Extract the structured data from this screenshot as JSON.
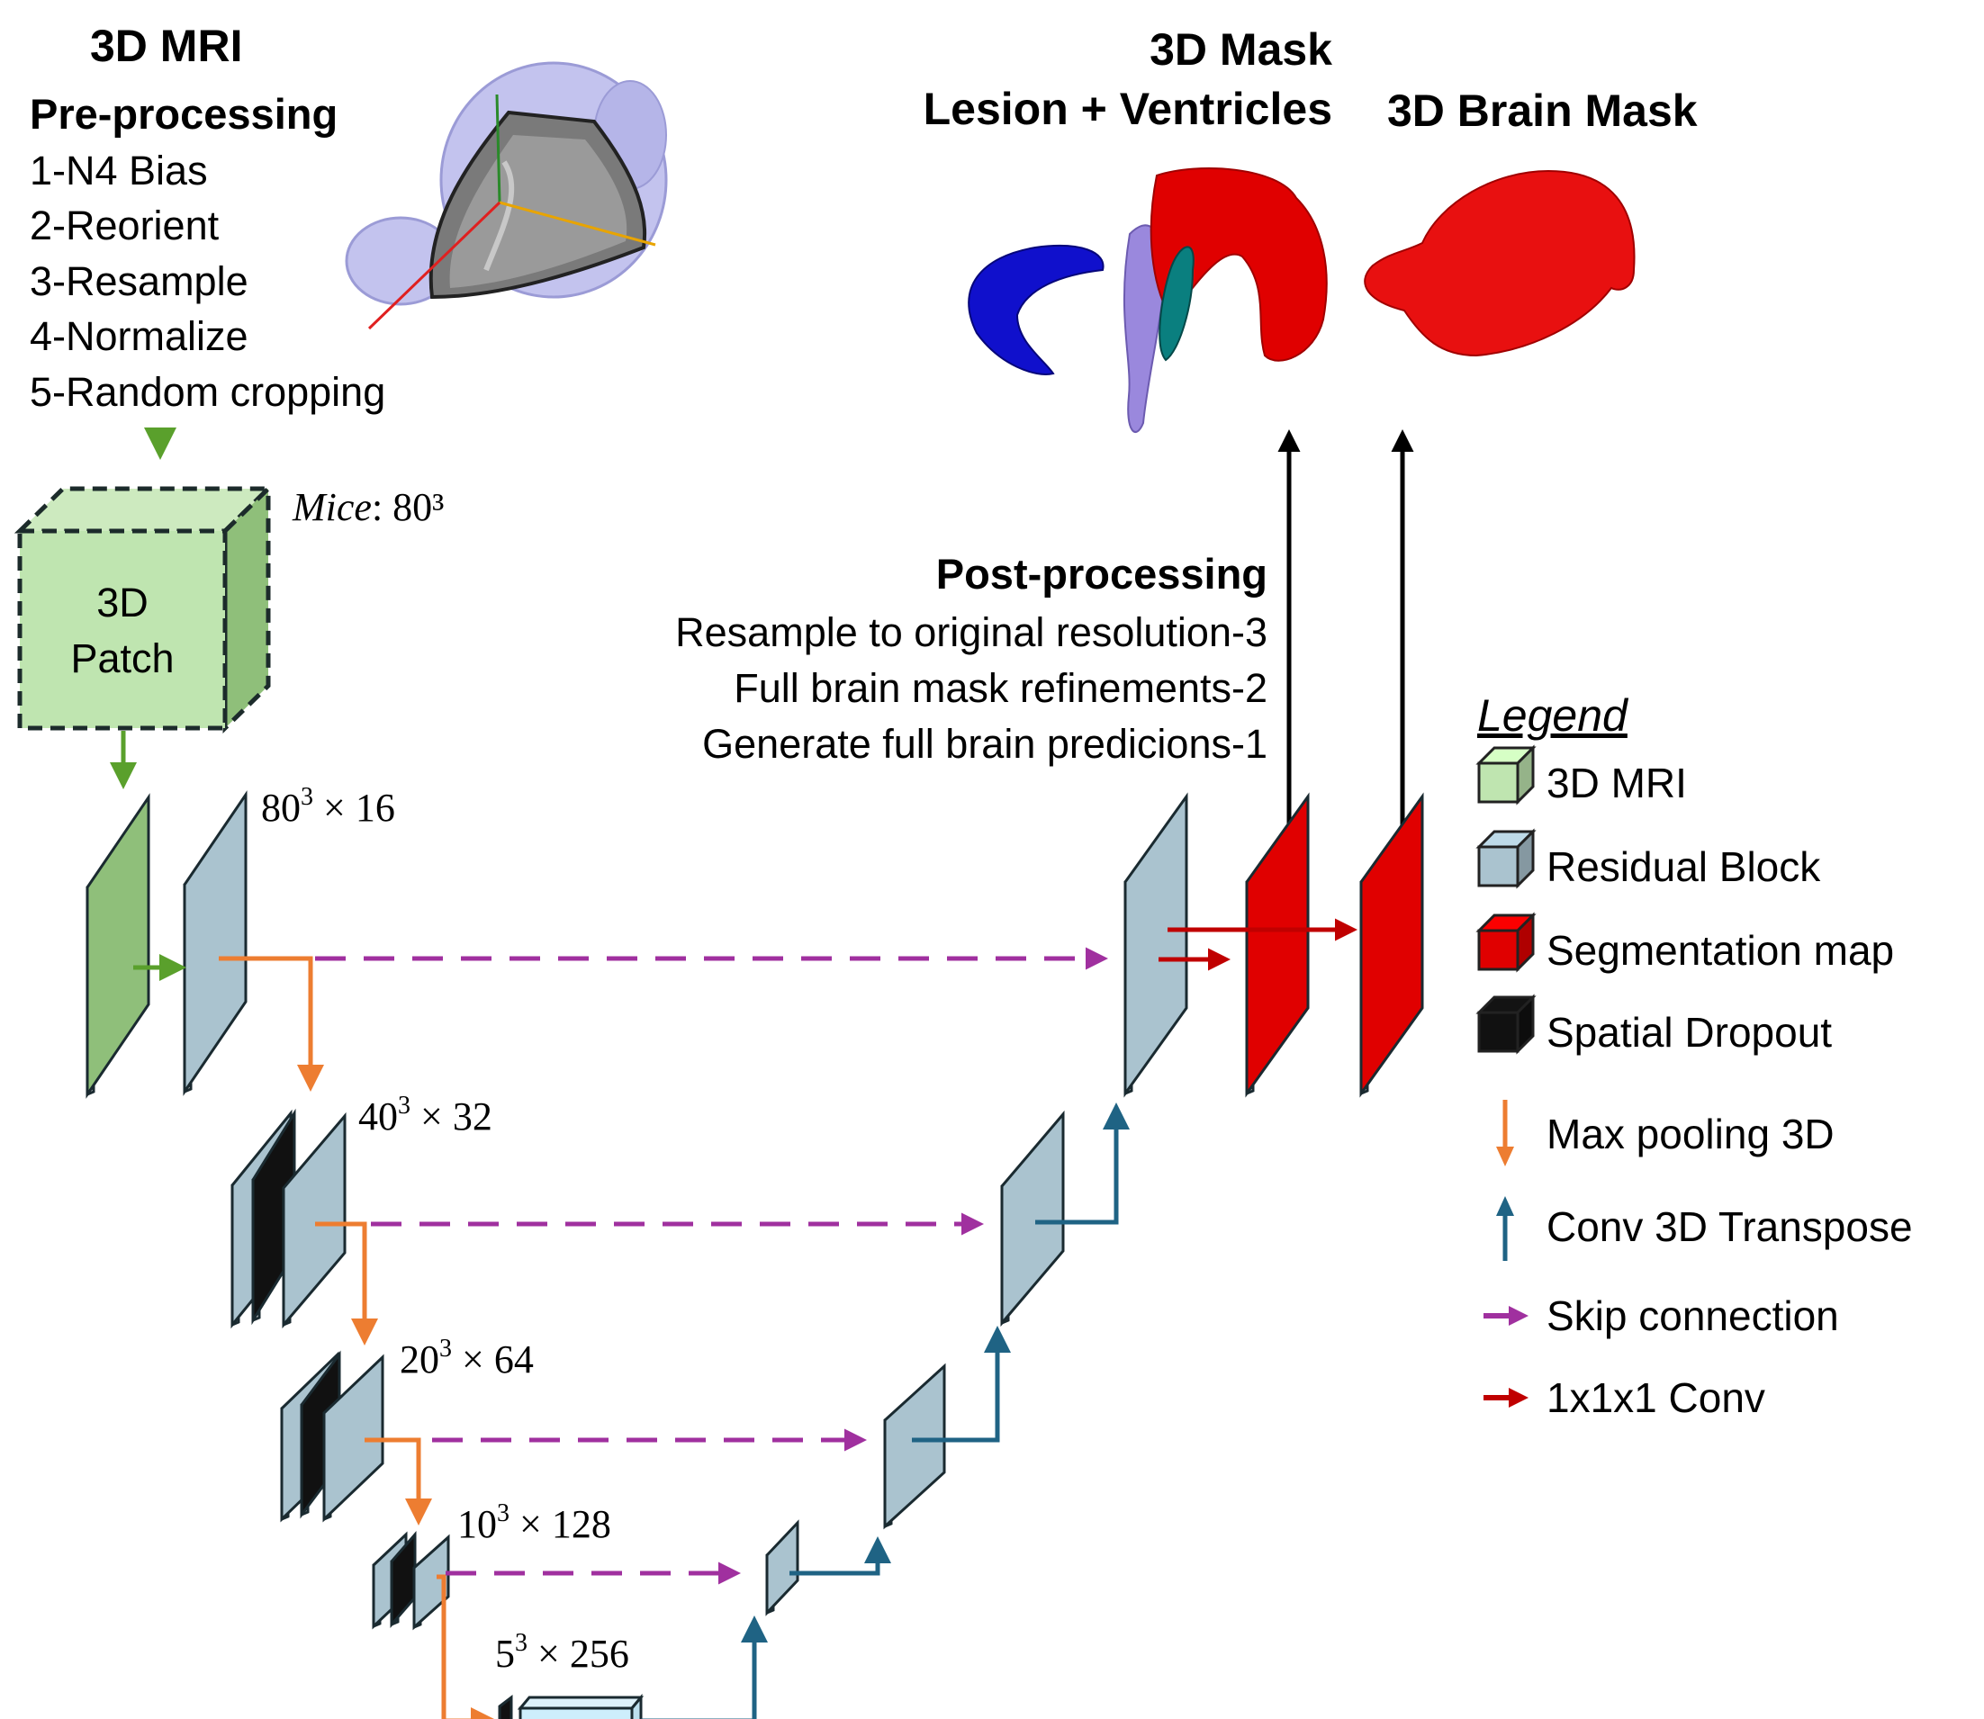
{
  "colors": {
    "patch_fill": "#bfe5b0",
    "patch_side": "#8fbf7a",
    "residual": "#aac3cf",
    "segmentation": "#e00000",
    "dropout": "#111111",
    "maxpool_arrow": "#ed7d31",
    "transpose_arrow": "#1f6384",
    "skip_arrow": "#a0309f",
    "conv1x1_arrow": "#c00000",
    "green_arrow": "#5aa02c"
  },
  "preprocessing": {
    "title": "3D MRI",
    "subtitle": "Pre-processing",
    "steps": [
      "1-N4 Bias",
      "2-Reorient",
      "3-Resample",
      "4-Normalize",
      "5-Random cropping"
    ],
    "image_icon": "brain-mri-3d-render"
  },
  "patch": {
    "label_line1": "3D",
    "label_line2": "Patch",
    "dim_italic": "Mice",
    "dim_rest": ": 80³"
  },
  "outputs": {
    "mask_title_line1": "3D Mask",
    "mask_title_line2": "Lesion + Ventricles",
    "brain_mask_title": "3D Brain Mask",
    "mask_icon": "lesion-ventricles-render",
    "brain_icon": "brain-mask-render"
  },
  "postprocessing": {
    "title": "Post-processing",
    "steps": [
      "Resample to original resolution-3",
      "Full brain mask refinements-2",
      "Generate full brain predicions-1"
    ]
  },
  "levels": [
    {
      "label_base": "80",
      "label_rest": " × 16"
    },
    {
      "label_base": "40",
      "label_rest": " × 32"
    },
    {
      "label_base": "20",
      "label_rest": " × 64"
    },
    {
      "label_base": "10",
      "label_rest": " × 128"
    },
    {
      "label_base": "5",
      "label_rest": " × 256"
    }
  ],
  "legend": {
    "title": "Legend",
    "items": [
      {
        "label": "3D MRI",
        "kind": "cube",
        "color": "#bfe5b0"
      },
      {
        "label": "Residual Block",
        "kind": "cube",
        "color": "#aac3cf"
      },
      {
        "label": "Segmentation map",
        "kind": "cube",
        "color": "#e00000"
      },
      {
        "label": "Spatial Dropout",
        "kind": "cube",
        "color": "#111111"
      },
      {
        "label": "Max pooling 3D",
        "kind": "arrow-down",
        "color": "#ed7d31"
      },
      {
        "label": "Conv 3D Transpose",
        "kind": "arrow-up",
        "color": "#1f6384"
      },
      {
        "label": "Skip connection",
        "kind": "arrow-right",
        "color": "#a0309f"
      },
      {
        "label": "1x1x1 Conv",
        "kind": "arrow-right",
        "color": "#c00000"
      }
    ]
  }
}
